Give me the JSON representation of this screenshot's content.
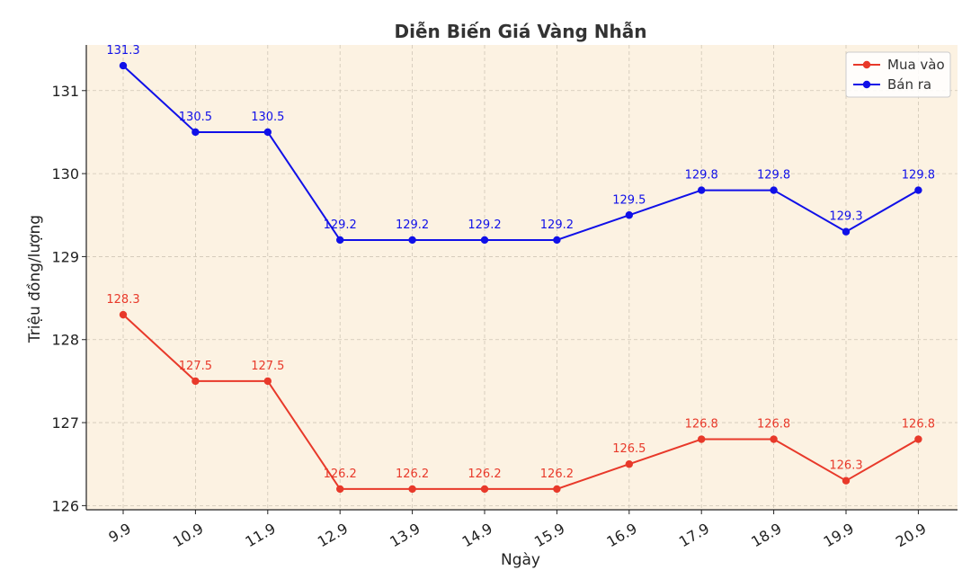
{
  "chart_data": {
    "type": "line",
    "title": "Diễn Biến Giá Vàng Nhẫn",
    "xlabel": "Ngày",
    "ylabel": "Triệu đồng/lượng",
    "categories": [
      "9.9",
      "10.9",
      "11.9",
      "12.9",
      "13.9",
      "14.9",
      "15.9",
      "16.9",
      "17.9",
      "18.9",
      "19.9",
      "20.9"
    ],
    "yticks": [
      126,
      127,
      128,
      129,
      130,
      131
    ],
    "ylim": [
      125.95,
      131.55
    ],
    "grid": true,
    "legend_position": "top-right",
    "background_color": "#fcf2e2",
    "series": [
      {
        "name": "Mua vào",
        "color": "#e8392a",
        "values": [
          128.3,
          127.5,
          127.5,
          126.2,
          126.2,
          126.2,
          126.2,
          126.5,
          126.8,
          126.8,
          126.3,
          126.8
        ],
        "labels": [
          "128.3",
          "127.5",
          "127.5",
          "126.2",
          "126.2",
          "126.2",
          "126.2",
          "126.5",
          "126.8",
          "126.8",
          "126.3",
          "126.8"
        ]
      },
      {
        "name": "Bán ra",
        "color": "#1010e8",
        "values": [
          131.3,
          130.5,
          130.5,
          129.2,
          129.2,
          129.2,
          129.2,
          129.5,
          129.8,
          129.8,
          129.3,
          129.8
        ],
        "labels": [
          "131.3",
          "130.5",
          "130.5",
          "129.2",
          "129.2",
          "129.2",
          "129.2",
          "129.5",
          "129.8",
          "129.8",
          "129.3",
          "129.8"
        ]
      }
    ]
  }
}
